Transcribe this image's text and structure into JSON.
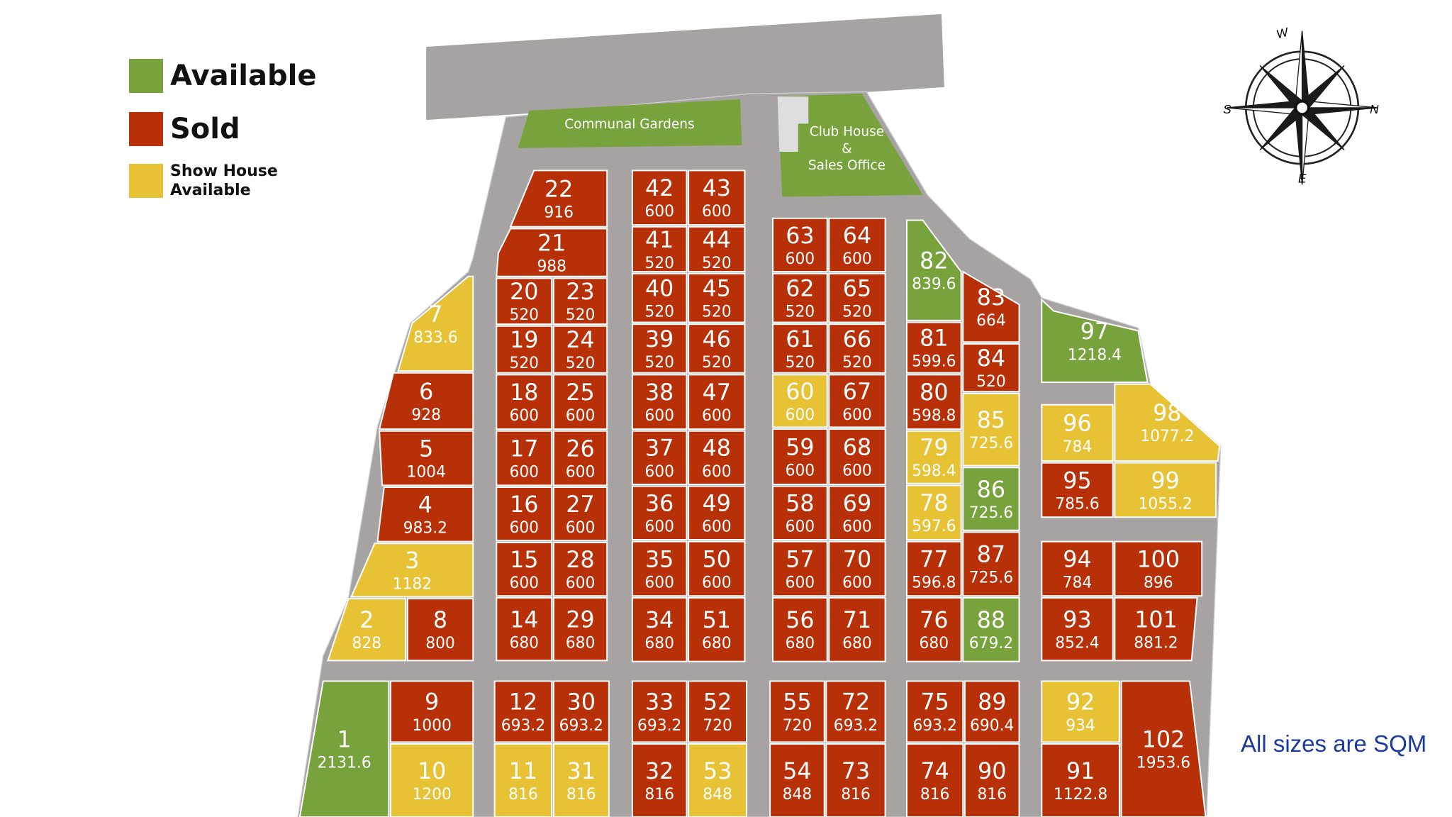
{
  "legend": {
    "available": {
      "label": "Available",
      "color": "#77a23c"
    },
    "sold": {
      "label": "Sold",
      "color": "#b83008"
    },
    "show_house": {
      "label": "Show House Available",
      "line1": "Show House",
      "line2": "Available",
      "color": "#e7c234"
    }
  },
  "amenities": {
    "communal_gardens": "Communal Gardens",
    "club_house_line1": "Club House",
    "club_house_line2": "&",
    "club_house_line3": "Sales Office"
  },
  "compass": {
    "north": "N",
    "south": "S",
    "east": "E",
    "west": "W"
  },
  "note": "All sizes are SQM",
  "colors": {
    "road": "#a7a3a3",
    "lot_border": "#ffffff",
    "note_text": "#1b3a9c"
  },
  "plots": [
    {
      "id": "1",
      "size": "2131.6",
      "status": "available"
    },
    {
      "id": "2",
      "size": "828",
      "status": "show_house"
    },
    {
      "id": "3",
      "size": "1182",
      "status": "show_house"
    },
    {
      "id": "4",
      "size": "983.2",
      "status": "sold"
    },
    {
      "id": "5",
      "size": "1004",
      "status": "sold"
    },
    {
      "id": "6",
      "size": "928",
      "status": "sold"
    },
    {
      "id": "7",
      "size": "833.6",
      "status": "show_house"
    },
    {
      "id": "8",
      "size": "800",
      "status": "sold"
    },
    {
      "id": "9",
      "size": "1000",
      "status": "sold"
    },
    {
      "id": "10",
      "size": "1200",
      "status": "show_house"
    },
    {
      "id": "11",
      "size": "816",
      "status": "show_house"
    },
    {
      "id": "12",
      "size": "693.2",
      "status": "sold"
    },
    {
      "id": "14",
      "size": "680",
      "status": "sold"
    },
    {
      "id": "15",
      "size": "600",
      "status": "sold"
    },
    {
      "id": "16",
      "size": "600",
      "status": "sold"
    },
    {
      "id": "17",
      "size": "600",
      "status": "sold"
    },
    {
      "id": "18",
      "size": "600",
      "status": "sold"
    },
    {
      "id": "19",
      "size": "520",
      "status": "sold"
    },
    {
      "id": "20",
      "size": "520",
      "status": "sold"
    },
    {
      "id": "21",
      "size": "988",
      "status": "sold"
    },
    {
      "id": "22",
      "size": "916",
      "status": "sold"
    },
    {
      "id": "23",
      "size": "520",
      "status": "sold"
    },
    {
      "id": "24",
      "size": "520",
      "status": "sold"
    },
    {
      "id": "25",
      "size": "600",
      "status": "sold"
    },
    {
      "id": "26",
      "size": "600",
      "status": "sold"
    },
    {
      "id": "27",
      "size": "600",
      "status": "sold"
    },
    {
      "id": "28",
      "size": "600",
      "status": "sold"
    },
    {
      "id": "29",
      "size": "680",
      "status": "sold"
    },
    {
      "id": "30",
      "size": "693.2",
      "status": "sold"
    },
    {
      "id": "31",
      "size": "816",
      "status": "show_house"
    },
    {
      "id": "32",
      "size": "816",
      "status": "sold"
    },
    {
      "id": "33",
      "size": "693.2",
      "status": "sold"
    },
    {
      "id": "34",
      "size": "680",
      "status": "sold"
    },
    {
      "id": "35",
      "size": "600",
      "status": "sold"
    },
    {
      "id": "36",
      "size": "600",
      "status": "sold"
    },
    {
      "id": "37",
      "size": "600",
      "status": "sold"
    },
    {
      "id": "38",
      "size": "600",
      "status": "sold"
    },
    {
      "id": "39",
      "size": "520",
      "status": "sold"
    },
    {
      "id": "40",
      "size": "520",
      "status": "sold"
    },
    {
      "id": "41",
      "size": "520",
      "status": "sold"
    },
    {
      "id": "42",
      "size": "600",
      "status": "sold"
    },
    {
      "id": "43",
      "size": "600",
      "status": "sold"
    },
    {
      "id": "44",
      "size": "520",
      "status": "sold"
    },
    {
      "id": "45",
      "size": "520",
      "status": "sold"
    },
    {
      "id": "46",
      "size": "520",
      "status": "sold"
    },
    {
      "id": "47",
      "size": "600",
      "status": "sold"
    },
    {
      "id": "48",
      "size": "600",
      "status": "sold"
    },
    {
      "id": "49",
      "size": "600",
      "status": "sold"
    },
    {
      "id": "50",
      "size": "600",
      "status": "sold"
    },
    {
      "id": "51",
      "size": "680",
      "status": "sold"
    },
    {
      "id": "52",
      "size": "720",
      "status": "sold"
    },
    {
      "id": "53",
      "size": "848",
      "status": "show_house"
    },
    {
      "id": "54",
      "size": "848",
      "status": "sold"
    },
    {
      "id": "55",
      "size": "720",
      "status": "sold"
    },
    {
      "id": "56",
      "size": "680",
      "status": "sold"
    },
    {
      "id": "57",
      "size": "600",
      "status": "sold"
    },
    {
      "id": "58",
      "size": "600",
      "status": "sold"
    },
    {
      "id": "59",
      "size": "600",
      "status": "sold"
    },
    {
      "id": "60",
      "size": "600",
      "status": "show_house"
    },
    {
      "id": "61",
      "size": "520",
      "status": "sold"
    },
    {
      "id": "62",
      "size": "520",
      "status": "sold"
    },
    {
      "id": "63",
      "size": "600",
      "status": "sold"
    },
    {
      "id": "64",
      "size": "600",
      "status": "sold"
    },
    {
      "id": "65",
      "size": "520",
      "status": "sold"
    },
    {
      "id": "66",
      "size": "520",
      "status": "sold"
    },
    {
      "id": "67",
      "size": "600",
      "status": "sold"
    },
    {
      "id": "68",
      "size": "600",
      "status": "sold"
    },
    {
      "id": "69",
      "size": "600",
      "status": "sold"
    },
    {
      "id": "70",
      "size": "600",
      "status": "sold"
    },
    {
      "id": "71",
      "size": "680",
      "status": "sold"
    },
    {
      "id": "72",
      "size": "693.2",
      "status": "sold"
    },
    {
      "id": "73",
      "size": "816",
      "status": "sold"
    },
    {
      "id": "74",
      "size": "816",
      "status": "sold"
    },
    {
      "id": "75",
      "size": "693.2",
      "status": "sold"
    },
    {
      "id": "76",
      "size": "680",
      "status": "sold"
    },
    {
      "id": "77",
      "size": "596.8",
      "status": "sold"
    },
    {
      "id": "78",
      "size": "597.6",
      "status": "show_house"
    },
    {
      "id": "79",
      "size": "598.4",
      "status": "show_house"
    },
    {
      "id": "80",
      "size": "598.8",
      "status": "sold"
    },
    {
      "id": "81",
      "size": "599.6",
      "status": "sold"
    },
    {
      "id": "82",
      "size": "839.6",
      "status": "available"
    },
    {
      "id": "83",
      "size": "664",
      "status": "sold"
    },
    {
      "id": "84",
      "size": "520",
      "status": "sold"
    },
    {
      "id": "85",
      "size": "725.6",
      "status": "show_house"
    },
    {
      "id": "86",
      "size": "725.6",
      "status": "available"
    },
    {
      "id": "87",
      "size": "725.6",
      "status": "sold"
    },
    {
      "id": "88",
      "size": "679.2",
      "status": "available"
    },
    {
      "id": "89",
      "size": "690.4",
      "status": "sold"
    },
    {
      "id": "90",
      "size": "816",
      "status": "sold"
    },
    {
      "id": "91",
      "size": "1122.8",
      "status": "sold"
    },
    {
      "id": "92",
      "size": "934",
      "status": "show_house"
    },
    {
      "id": "93",
      "size": "852.4",
      "status": "sold"
    },
    {
      "id": "94",
      "size": "784",
      "status": "sold"
    },
    {
      "id": "95",
      "size": "785.6",
      "status": "sold"
    },
    {
      "id": "96",
      "size": "784",
      "status": "show_house"
    },
    {
      "id": "97",
      "size": "1218.4",
      "status": "available"
    },
    {
      "id": "98",
      "size": "1077.2",
      "status": "show_house"
    },
    {
      "id": "99",
      "size": "1055.2",
      "status": "show_house"
    },
    {
      "id": "100",
      "size": "896",
      "status": "sold"
    },
    {
      "id": "101",
      "size": "881.2",
      "status": "sold"
    },
    {
      "id": "102",
      "size": "1953.6",
      "status": "sold"
    }
  ]
}
